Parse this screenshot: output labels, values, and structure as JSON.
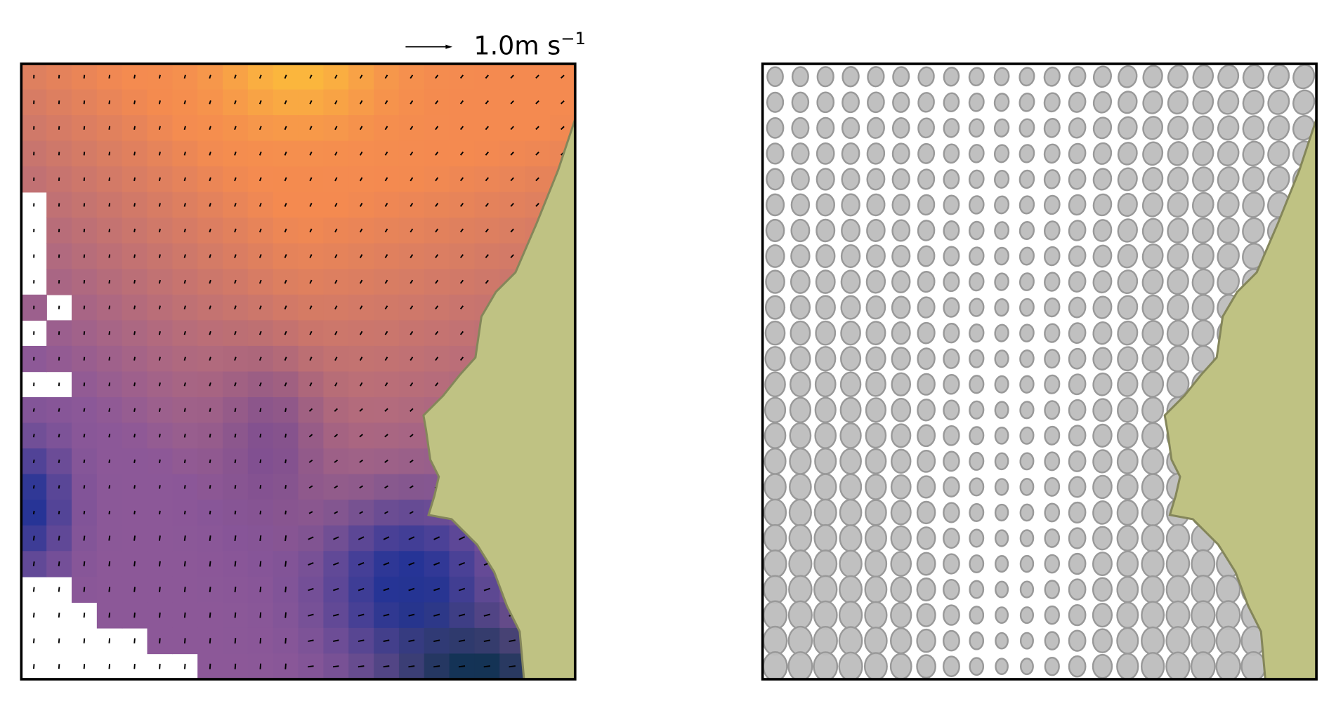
{
  "quiver_key": {
    "text": "1.0m s",
    "superscript": "−1"
  }
}
